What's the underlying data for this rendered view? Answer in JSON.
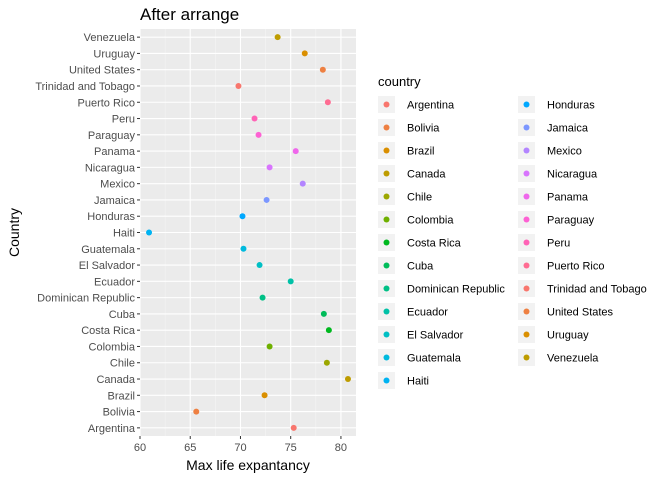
{
  "chart_data": {
    "type": "scatter",
    "title": "After arrange",
    "xlabel": "Max life expantancy",
    "ylabel": "Country",
    "xlim": [
      60,
      81.5
    ],
    "x_ticks": [
      60,
      65,
      70,
      75,
      80
    ],
    "grid": true,
    "legend_title": "country",
    "legend_position": "right",
    "categories": [
      "Argentina",
      "Bolivia",
      "Brazil",
      "Canada",
      "Chile",
      "Colombia",
      "Costa Rica",
      "Cuba",
      "Dominican Republic",
      "Ecuador",
      "El Salvador",
      "Guatemala",
      "Haiti",
      "Honduras",
      "Jamaica",
      "Mexico",
      "Nicaragua",
      "Panama",
      "Paraguay",
      "Peru",
      "Puerto Rico",
      "Trinidad and Tobago",
      "United States",
      "Uruguay",
      "Venezuela"
    ],
    "values": [
      75.3,
      65.6,
      72.4,
      80.7,
      78.6,
      72.9,
      78.8,
      78.3,
      72.2,
      75.0,
      71.9,
      70.3,
      60.9,
      70.2,
      72.6,
      76.2,
      72.9,
      75.5,
      71.8,
      71.4,
      78.7,
      69.8,
      78.2,
      76.4,
      73.7
    ],
    "colors": [
      "#F8766D",
      "#EE8042",
      "#DA8F00",
      "#BE9C00",
      "#9CA700",
      "#6FB000",
      "#00B81F",
      "#00BC5A",
      "#00C086",
      "#00C1A7",
      "#00BFC4",
      "#00BADE",
      "#00B3F2",
      "#00A8FF",
      "#7C97FF",
      "#B385FF",
      "#D874FD",
      "#EF67EB",
      "#FD61D3",
      "#FF63B6",
      "#FF6C92",
      "#F8766D",
      "#EE8042",
      "#DA8F00",
      "#BE9C00"
    ]
  }
}
